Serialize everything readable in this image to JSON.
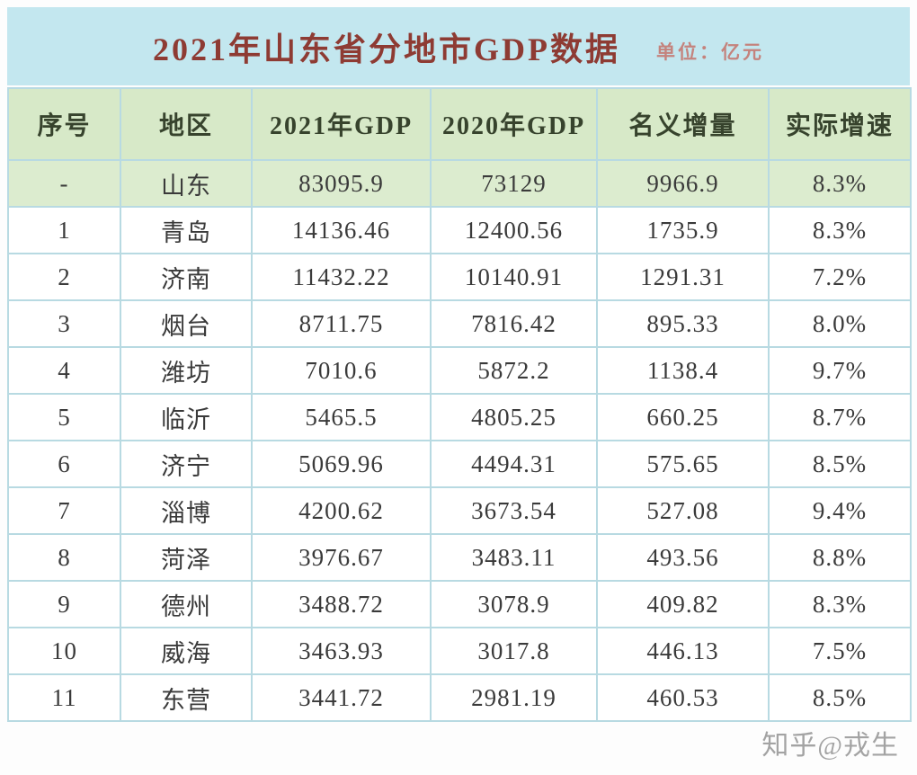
{
  "header": {
    "title": "2021年山东省分地市GDP数据",
    "unit_label": "单位：亿元"
  },
  "watermark": "知乎@戎生",
  "colors": {
    "title_bar_bg": "#c3e7ef",
    "title_text": "#8e3b33",
    "unit_text": "#c4837d",
    "header_bg": "#d7e9c8",
    "header_text": "#37432d",
    "highlight_row_bg": "#dceccf",
    "border_color": "#b8dae2",
    "cell_text": "#3a3a3a",
    "watermark_text": "#a3a3a3"
  },
  "chart_data": {
    "type": "table",
    "title": "2021年山东省分地市GDP数据",
    "unit": "亿元",
    "columns": [
      "序号",
      "地区",
      "2021年GDP",
      "2020年GDP",
      "名义增量",
      "实际增速"
    ],
    "highlight_row": 0,
    "rows": [
      [
        "-",
        "山东",
        "83095.9",
        "73129",
        "9966.9",
        "8.3%"
      ],
      [
        "1",
        "青岛",
        "14136.46",
        "12400.56",
        "1735.9",
        "8.3%"
      ],
      [
        "2",
        "济南",
        "11432.22",
        "10140.91",
        "1291.31",
        "7.2%"
      ],
      [
        "3",
        "烟台",
        "8711.75",
        "7816.42",
        "895.33",
        "8.0%"
      ],
      [
        "4",
        "潍坊",
        "7010.6",
        "5872.2",
        "1138.4",
        "9.7%"
      ],
      [
        "5",
        "临沂",
        "5465.5",
        "4805.25",
        "660.25",
        "8.7%"
      ],
      [
        "6",
        "济宁",
        "5069.96",
        "4494.31",
        "575.65",
        "8.5%"
      ],
      [
        "7",
        "淄博",
        "4200.62",
        "3673.54",
        "527.08",
        "9.4%"
      ],
      [
        "8",
        "菏泽",
        "3976.67",
        "3483.11",
        "493.56",
        "8.8%"
      ],
      [
        "9",
        "德州",
        "3488.72",
        "3078.9",
        "409.82",
        "8.3%"
      ],
      [
        "10",
        "威海",
        "3463.93",
        "3017.8",
        "446.13",
        "7.5%"
      ],
      [
        "11",
        "东营",
        "3441.72",
        "2981.19",
        "460.53",
        "8.5%"
      ]
    ]
  }
}
